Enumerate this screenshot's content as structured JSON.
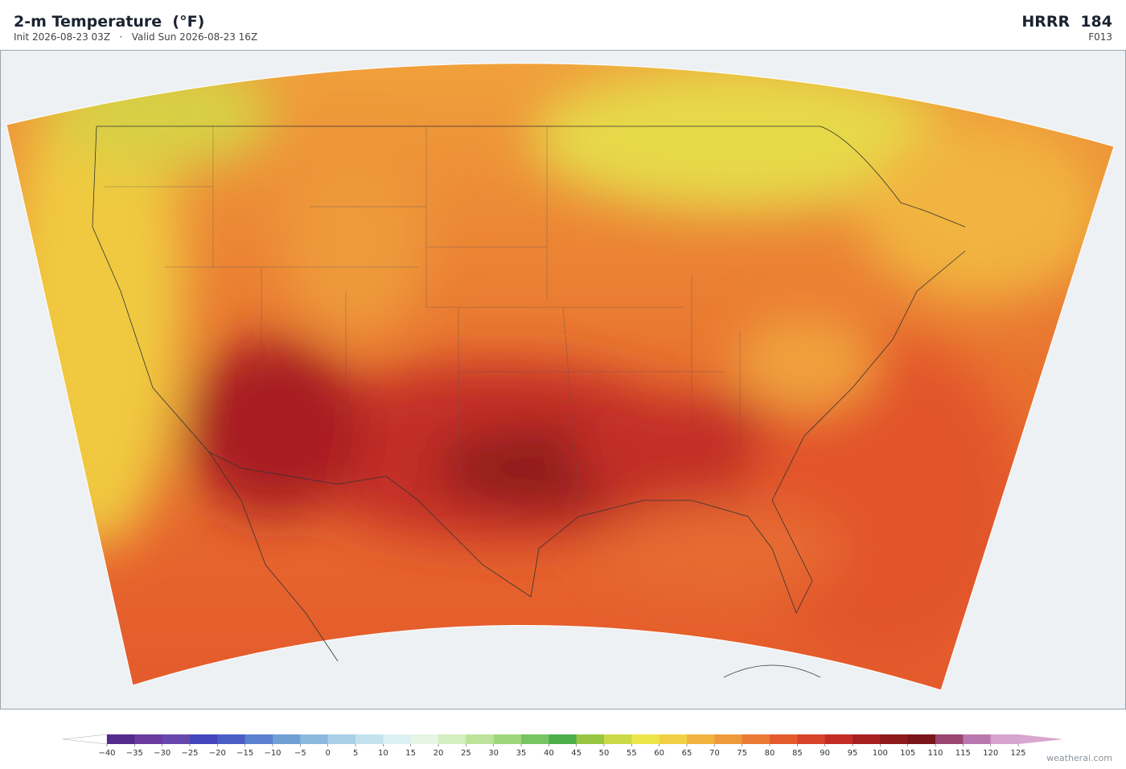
{
  "header": {
    "title": "2-m Temperature  (°F)",
    "subtitle": "Init 2026-08-23 03Z   ·   Valid Sun 2026-08-23 16Z",
    "model": "HRRR  184",
    "forecast_hour": "F013"
  },
  "colorbar": {
    "ticks": [
      {
        "value": -40,
        "label": "−40"
      },
      {
        "value": -35,
        "label": "−35"
      },
      {
        "value": -30,
        "label": "−30"
      },
      {
        "value": -25,
        "label": "−25"
      },
      {
        "value": -20,
        "label": "−20"
      },
      {
        "value": -15,
        "label": "−15"
      },
      {
        "value": -10,
        "label": "−10"
      },
      {
        "value": -5,
        "label": "−5"
      },
      0,
      5,
      10,
      15,
      20,
      25,
      30,
      35,
      40,
      45,
      50,
      55,
      60,
      65,
      70,
      75,
      80,
      85,
      90,
      95,
      100,
      105,
      110,
      115,
      120,
      125
    ],
    "colors": [
      "#552a8f",
      "#6a3a9e",
      "#6747ad",
      "#4446bd",
      "#4a5ec6",
      "#5a80cf",
      "#709fd6",
      "#8bb8dd",
      "#a9d0e6",
      "#c3e2ee",
      "#dbf0f2",
      "#e6f5e4",
      "#d3eebf",
      "#bde39a",
      "#9ed77b",
      "#77c462",
      "#4daf4a",
      "#99c642",
      "#cbd847",
      "#ece54a",
      "#f2d046",
      "#f1b43f",
      "#ee993a",
      "#ea7a34",
      "#e45c2e",
      "#d8412a",
      "#c32d25",
      "#a81f20",
      "#8e1a1c",
      "#7a1519",
      "#9a4470",
      "#ba79ae",
      "#d7a4cf"
    ],
    "under_color": "#ffffff",
    "over_color": "#d9a6d0"
  },
  "footer": {
    "credit": "weatherai.com"
  }
}
